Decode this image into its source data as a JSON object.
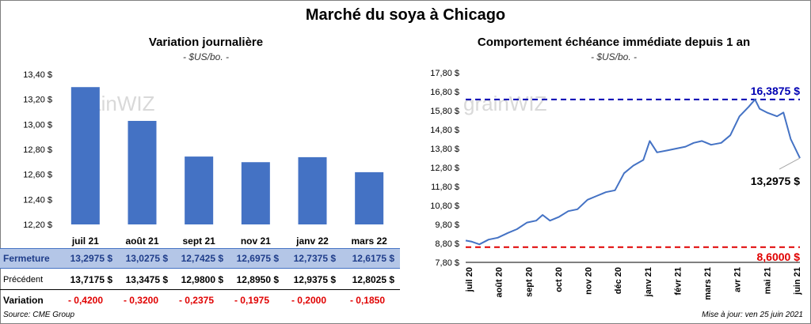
{
  "title": "Marché du soya à Chicago",
  "left_panel": {
    "title": "Variation  journalière",
    "subtitle": "- $US/bo. -"
  },
  "right_panel": {
    "title": "Comportement  échéance immédiate depuis 1 an",
    "subtitle": "- $US/bo. -"
  },
  "watermark": "grainWIZ",
  "chart_data": [
    {
      "type": "bar",
      "title": "Variation  journalière",
      "subtitle": "- $US/bo. -",
      "categories": [
        "juil 21",
        "août 21",
        "sept 21",
        "nov 21",
        "janv 22",
        "mars 22"
      ],
      "values": [
        13.2975,
        13.0275,
        12.7425,
        12.6975,
        12.7375,
        12.6175
      ],
      "ylim": [
        12.2,
        13.4
      ],
      "yticks": [
        12.2,
        12.4,
        12.6,
        12.8,
        13.0,
        13.2,
        13.4
      ],
      "ytick_labels": [
        "12,20 $",
        "12,40 $",
        "12,60 $",
        "12,80 $",
        "13,00 $",
        "13,20 $",
        "13,40 $"
      ],
      "bar_color": "#4472c4",
      "grid": false
    },
    {
      "type": "line",
      "title": "Comportement  échéance immédiate depuis 1 an",
      "subtitle": "- $US/bo. -",
      "x_start": "2020-06-25",
      "x_end": "2021-06-25",
      "xtick_labels": [
        "juil 20",
        "août 20",
        "sept 20",
        "oct 20",
        "nov 20",
        "déc 20",
        "janv 21",
        "févr 21",
        "mars 21",
        "avr 21",
        "mai 21",
        "juin 21"
      ],
      "ylim": [
        7.8,
        17.8
      ],
      "yticks": [
        7.8,
        8.8,
        9.8,
        10.8,
        11.8,
        12.8,
        13.8,
        14.8,
        15.8,
        16.8,
        17.8
      ],
      "ytick_labels": [
        "7,80 $",
        "8,80 $",
        "9,80 $",
        "10,80 $",
        "11,80 $",
        "12,80 $",
        "13,80 $",
        "14,80 $",
        "15,80 $",
        "16,80 $",
        "17,80 $"
      ],
      "line_color": "#4472c4",
      "series": [
        {
          "x": [
            "2020-06-25",
            "2020-07-01",
            "2020-07-10",
            "2020-07-20",
            "2020-07-30",
            "2020-08-10",
            "2020-08-20",
            "2020-08-31",
            "2020-09-10",
            "2020-09-17",
            "2020-09-25",
            "2020-10-05",
            "2020-10-15",
            "2020-10-25",
            "2020-11-05",
            "2020-11-15",
            "2020-11-25",
            "2020-12-05",
            "2020-12-15",
            "2020-12-25",
            "2021-01-05",
            "2021-01-12",
            "2021-01-20",
            "2021-01-31",
            "2021-02-10",
            "2021-02-20",
            "2021-03-01",
            "2021-03-10",
            "2021-03-20",
            "2021-03-31",
            "2021-04-10",
            "2021-04-20",
            "2021-04-30",
            "2021-05-07",
            "2021-05-12",
            "2021-05-20",
            "2021-05-31",
            "2021-06-07",
            "2021-06-15",
            "2021-06-25"
          ],
          "y": [
            8.95,
            8.9,
            8.75,
            9.0,
            9.1,
            9.35,
            9.55,
            9.9,
            10.0,
            10.3,
            10.0,
            10.2,
            10.5,
            10.6,
            11.1,
            11.3,
            11.5,
            11.6,
            12.5,
            12.9,
            13.2,
            14.2,
            13.6,
            13.7,
            13.8,
            13.9,
            14.1,
            14.2,
            14.0,
            14.1,
            14.5,
            15.5,
            16.0,
            16.3875,
            15.9,
            15.7,
            15.5,
            15.7,
            14.3,
            13.2975
          ]
        }
      ],
      "reference_lines": [
        {
          "value": 16.3875,
          "label": "16,3875  $",
          "color": "#0000b3"
        },
        {
          "value": 8.6,
          "label": "8,6000  $",
          "color": "#e00000"
        }
      ],
      "last_value_label": "13,2975 $",
      "grid": false
    }
  ],
  "table": {
    "rows": [
      {
        "label": "Fermeture",
        "values": [
          "13,2975  $",
          "13,0275  $",
          "12,7425  $",
          "12,6975  $",
          "12,7375  $",
          "12,6175  $"
        ]
      },
      {
        "label": "Précédent",
        "values": [
          "13,7175  $",
          "13,3475  $",
          "12,9800  $",
          "12,8950  $",
          "12,9375  $",
          "12,8025  $"
        ]
      },
      {
        "label": "Variation",
        "values": [
          "- 0,4200",
          "- 0,3200",
          "- 0,2375",
          "- 0,1975",
          "- 0,2000",
          "- 0,1850"
        ]
      }
    ]
  },
  "footer": {
    "source": "Source: CME Group",
    "updated": "Mise à jour: ven 25 juin 2021"
  }
}
